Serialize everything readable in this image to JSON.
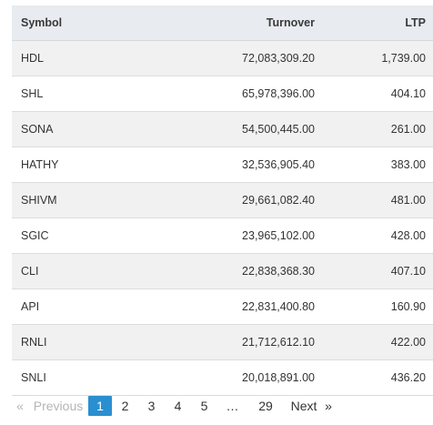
{
  "table": {
    "headers": {
      "symbol": "Symbol",
      "turnover": "Turnover",
      "ltp": "LTP"
    },
    "rows": [
      {
        "symbol": "HDL",
        "turnover": "72,083,309.20",
        "ltp": "1,739.00"
      },
      {
        "symbol": "SHL",
        "turnover": "65,978,396.00",
        "ltp": "404.10"
      },
      {
        "symbol": "SONA",
        "turnover": "54,500,445.00",
        "ltp": "261.00"
      },
      {
        "symbol": "HATHY",
        "turnover": "32,536,905.40",
        "ltp": "383.00"
      },
      {
        "symbol": "SHIVM",
        "turnover": "29,661,082.40",
        "ltp": "481.00"
      },
      {
        "symbol": "SGIC",
        "turnover": "23,965,102.00",
        "ltp": "428.00"
      },
      {
        "symbol": "CLI",
        "turnover": "22,838,368.30",
        "ltp": "407.10"
      },
      {
        "symbol": "API",
        "turnover": "22,831,400.80",
        "ltp": "160.90"
      },
      {
        "symbol": "RNLI",
        "turnover": "21,712,612.10",
        "ltp": "422.00"
      },
      {
        "symbol": "SNLI",
        "turnover": "20,018,891.00",
        "ltp": "436.20"
      }
    ]
  },
  "pagination": {
    "prev_arrow": "«",
    "prev_label": "Previous",
    "pages": [
      "1",
      "2",
      "3",
      "4",
      "5"
    ],
    "ellipsis": "…",
    "last_page": "29",
    "next_label": "Next",
    "next_arrow": "»",
    "current": "1",
    "accent_color": "#2a8fd0"
  }
}
